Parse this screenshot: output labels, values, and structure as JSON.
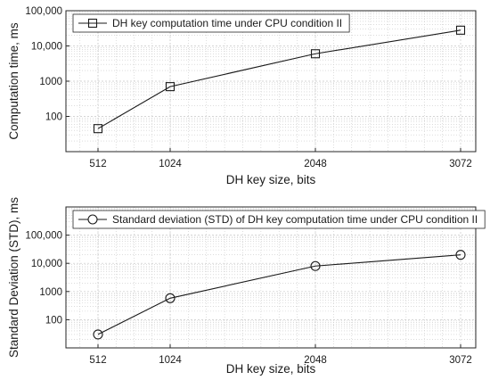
{
  "chart_data": [
    {
      "type": "line",
      "x_scale": "categorical-spaced",
      "y_scale": "log",
      "x": [
        512,
        1024,
        2048,
        3072
      ],
      "xlabel": "DH key size, bits",
      "ylabel": "Computation time, ms",
      "xlim": [
        320,
        3072
      ],
      "ylim": [
        10,
        100000
      ],
      "y_ticks": [
        "100",
        "1000",
        "10,000",
        "100,000"
      ],
      "grid": true,
      "legend_placement": "top-left",
      "series": [
        {
          "name": "DH key computation time under CPU condition II",
          "marker": "square",
          "x": [
            512,
            1024,
            2048,
            3072
          ],
          "values": [
            45,
            700,
            6000,
            28000
          ]
        }
      ]
    },
    {
      "type": "line",
      "x_scale": "categorical-spaced",
      "y_scale": "log",
      "x": [
        512,
        1024,
        2048,
        3072
      ],
      "xlabel": "DH key size, bits",
      "ylabel": "Standard Deviation (STD), ms",
      "xlim": [
        320,
        3072
      ],
      "ylim": [
        10,
        1000000
      ],
      "y_ticks": [
        "100",
        "1000",
        "10,000",
        "100,000"
      ],
      "grid": true,
      "legend_placement": "top-left",
      "series": [
        {
          "name": "Standard deviation (STD) of DH key computation time under CPU condition II",
          "marker": "circle",
          "x": [
            512,
            1024,
            2048,
            3072
          ],
          "values": [
            30,
            580,
            8000,
            20000
          ]
        }
      ]
    }
  ],
  "colors": {
    "line": "#1a1a1a",
    "grid": "#c8c8c8",
    "frame": "#262626"
  }
}
